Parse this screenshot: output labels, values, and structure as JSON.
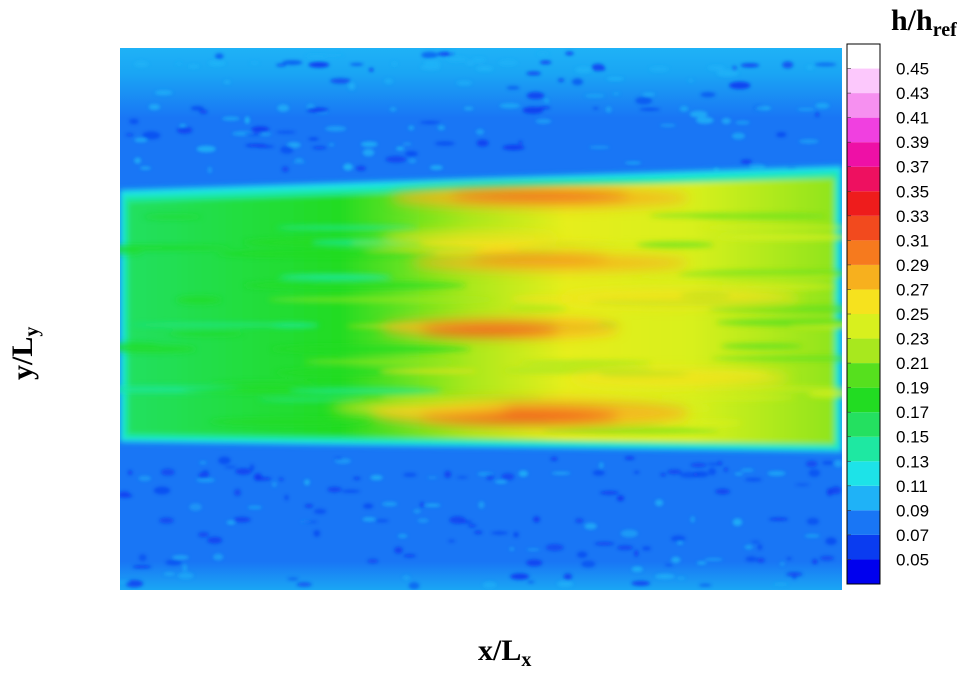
{
  "chart_data": {
    "type": "heatmap",
    "title": "",
    "xlabel": {
      "base": "x/L",
      "sub": "x"
    },
    "ylabel": {
      "base": "y/L",
      "sub": "y"
    },
    "colorbar": {
      "title": {
        "base": "h/h",
        "sub": "ref"
      },
      "levels": [
        "0.05",
        "0.07",
        "0.09",
        "0.11",
        "0.13",
        "0.15",
        "0.17",
        "0.19",
        "0.21",
        "0.23",
        "0.25",
        "0.27",
        "0.29",
        "0.31",
        "0.33",
        "0.35",
        "0.37",
        "0.39",
        "0.41",
        "0.43",
        "0.45"
      ],
      "colors": [
        "#0000ee",
        "#0a3cf0",
        "#1976f5",
        "#1fb2f7",
        "#1de3e8",
        "#1ee8a2",
        "#24e060",
        "#22dc22",
        "#56e01e",
        "#a8e81e",
        "#d8f01e",
        "#f6e21e",
        "#f7b01e",
        "#f67a1e",
        "#f24a1e",
        "#ee1c1c",
        "#ee1060",
        "#ee10a6",
        "#f040e0",
        "#f690f0",
        "#fcc8fc",
        "#ffffff"
      ],
      "placement": "right"
    },
    "grid": false
  }
}
